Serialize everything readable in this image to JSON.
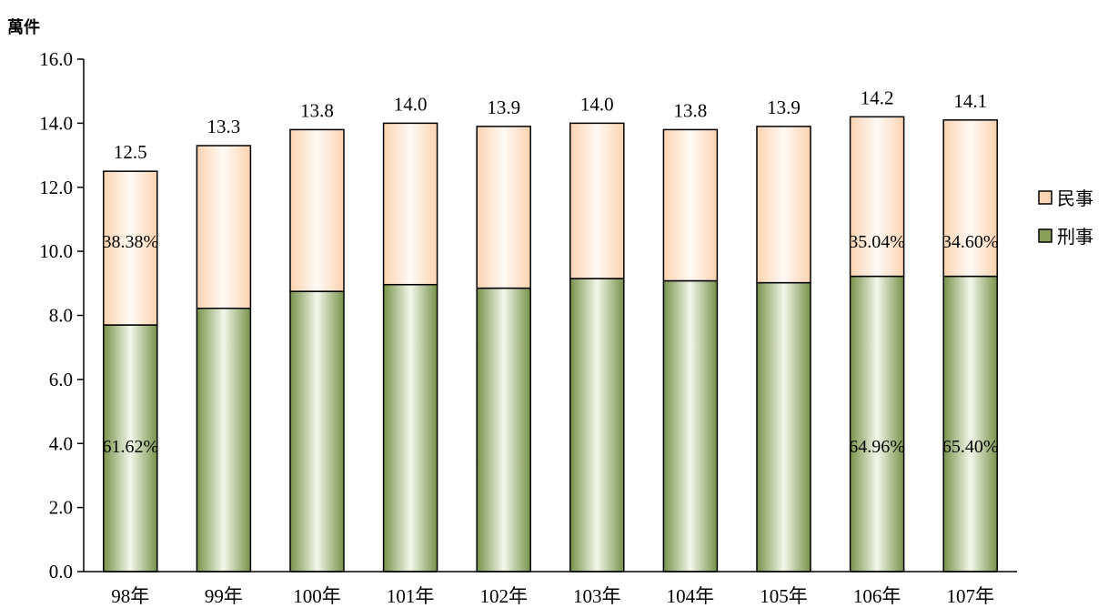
{
  "chart_data": {
    "type": "bar",
    "stacked": true,
    "y_unit_label": "萬件",
    "ylim": [
      0,
      16
    ],
    "yticks": [
      "0.0",
      "2.0",
      "4.0",
      "6.0",
      "8.0",
      "10.0",
      "12.0",
      "14.0",
      "16.0"
    ],
    "categories": [
      "98年",
      "99年",
      "100年",
      "101年",
      "102年",
      "103年",
      "104年",
      "105年",
      "106年",
      "107年"
    ],
    "series": [
      {
        "name": "刑事",
        "color": "#8aa05a",
        "values": [
          7.7,
          8.22,
          8.75,
          8.96,
          8.85,
          9.15,
          9.08,
          9.02,
          9.22,
          9.22
        ]
      },
      {
        "name": "民事",
        "color": "#fcd5b4",
        "values": [
          4.8,
          5.08,
          5.05,
          5.04,
          5.05,
          4.85,
          4.72,
          4.88,
          4.98,
          4.88
        ]
      }
    ],
    "totals": [
      "12.5",
      "13.3",
      "13.8",
      "14.0",
      "13.9",
      "14.0",
      "13.8",
      "13.9",
      "14.2",
      "14.1"
    ],
    "percent_labels": [
      {
        "category_index": 0,
        "criminal": "61.62%",
        "civil": "38.38%"
      },
      {
        "category_index": 8,
        "criminal": "64.96%",
        "civil": "35.04%"
      },
      {
        "category_index": 9,
        "criminal": "65.40%",
        "civil": "34.60%"
      }
    ],
    "legend": {
      "position": "right",
      "entries": [
        "民事",
        "刑事"
      ]
    },
    "grid": false
  }
}
